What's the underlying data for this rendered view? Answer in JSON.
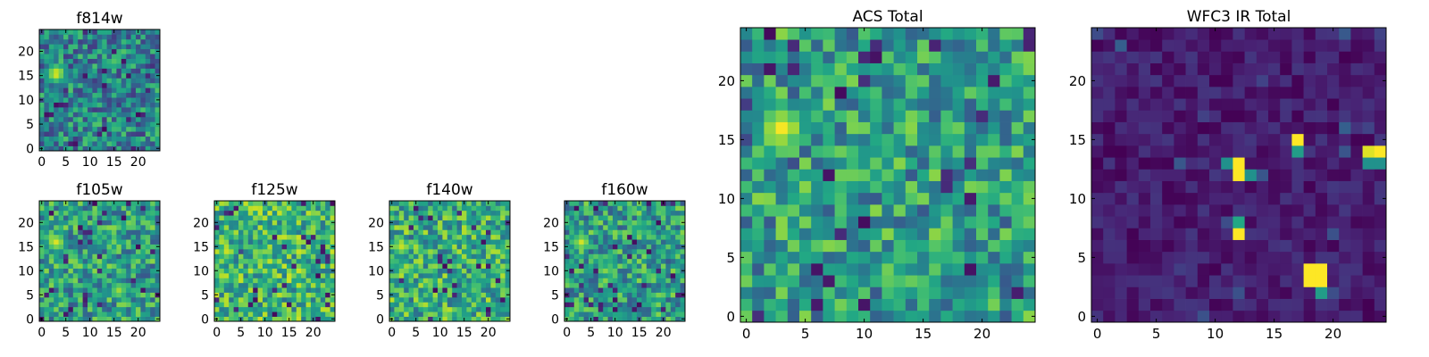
{
  "chart_data": [
    {
      "type": "heatmap",
      "title": "f814w",
      "colormap": "viridis",
      "xlim": [
        -0.5,
        24.5
      ],
      "ylim": [
        -0.5,
        24.5
      ],
      "x_ticks": [
        0,
        5,
        10,
        15,
        20
      ],
      "y_ticks": [
        0,
        5,
        10,
        15,
        20
      ],
      "grid": false,
      "bright_blobs": [
        {
          "x": 3,
          "y": 15.5,
          "level": 0.95
        }
      ],
      "background_level": 0.45
    },
    {
      "type": "heatmap",
      "title": "f105w",
      "colormap": "viridis",
      "xlim": [
        -0.5,
        24.5
      ],
      "ylim": [
        -0.5,
        24.5
      ],
      "x_ticks": [
        0,
        5,
        10,
        15,
        20
      ],
      "y_ticks": [
        0,
        5,
        10,
        15,
        20
      ],
      "grid": false,
      "bright_blobs": [
        {
          "x": 3,
          "y": 16,
          "level": 0.95
        },
        {
          "x": 16,
          "y": 6,
          "level": 0.85
        }
      ],
      "background_level": 0.55
    },
    {
      "type": "heatmap",
      "title": "f125w",
      "colormap": "viridis",
      "xlim": [
        -0.5,
        24.5
      ],
      "ylim": [
        -0.5,
        24.5
      ],
      "x_ticks": [
        0,
        5,
        10,
        15,
        20
      ],
      "y_ticks": [
        0,
        5,
        10,
        15,
        20
      ],
      "grid": false,
      "bright_blobs": [
        {
          "x": 2,
          "y": 14,
          "level": 0.85
        }
      ],
      "background_level": 0.65
    },
    {
      "type": "heatmap",
      "title": "f140w",
      "colormap": "viridis",
      "xlim": [
        -0.5,
        24.5
      ],
      "ylim": [
        -0.5,
        24.5
      ],
      "x_ticks": [
        0,
        5,
        10,
        15,
        20
      ],
      "y_ticks": [
        0,
        5,
        10,
        15,
        20
      ],
      "grid": false,
      "bright_blobs": [
        {
          "x": 2,
          "y": 15,
          "level": 0.9
        }
      ],
      "background_level": 0.62
    },
    {
      "type": "heatmap",
      "title": "f160w",
      "colormap": "viridis",
      "xlim": [
        -0.5,
        24.5
      ],
      "ylim": [
        -0.5,
        24.5
      ],
      "x_ticks": [
        0,
        5,
        10,
        15,
        20
      ],
      "y_ticks": [
        0,
        5,
        10,
        15,
        20
      ],
      "grid": false,
      "bright_blobs": [
        {
          "x": 3,
          "y": 16,
          "level": 0.92
        }
      ],
      "background_level": 0.55
    },
    {
      "type": "heatmap",
      "title": "ACS Total",
      "colormap": "viridis",
      "xlim": [
        -0.5,
        24.5
      ],
      "ylim": [
        -0.5,
        24.5
      ],
      "x_ticks": [
        0,
        5,
        10,
        15,
        20
      ],
      "y_ticks": [
        0,
        5,
        10,
        15,
        20
      ],
      "grid": false,
      "bright_blobs": [
        {
          "x": 3,
          "y": 16,
          "level": 0.97
        }
      ],
      "background_level": 0.55
    },
    {
      "type": "heatmap",
      "title": "WFC3 IR Total",
      "colormap": "viridis",
      "xlim": [
        -0.5,
        24.5
      ],
      "ylim": [
        -0.5,
        24.5
      ],
      "x_ticks": [
        0,
        5,
        10,
        15,
        20
      ],
      "y_ticks": [
        0,
        5,
        10,
        15,
        20
      ],
      "grid": false,
      "background_level": 0.08,
      "bright_pixels": [
        {
          "x": 18,
          "y": 3,
          "level": 1.0
        },
        {
          "x": 19,
          "y": 3,
          "level": 1.0
        },
        {
          "x": 18,
          "y": 4,
          "level": 1.0
        },
        {
          "x": 19,
          "y": 4,
          "level": 1.0
        },
        {
          "x": 12,
          "y": 7,
          "level": 1.0
        },
        {
          "x": 12,
          "y": 8,
          "level": 0.6
        },
        {
          "x": 12,
          "y": 12,
          "level": 1.0
        },
        {
          "x": 12,
          "y": 13,
          "level": 1.0
        },
        {
          "x": 11,
          "y": 13,
          "level": 0.5
        },
        {
          "x": 13,
          "y": 12,
          "level": 0.5
        },
        {
          "x": 17,
          "y": 15,
          "level": 1.0
        },
        {
          "x": 17,
          "y": 14,
          "level": 0.55
        },
        {
          "x": 24,
          "y": 14,
          "level": 1.0
        },
        {
          "x": 23,
          "y": 14,
          "level": 0.95
        },
        {
          "x": 23,
          "y": 13,
          "level": 0.5
        },
        {
          "x": 24,
          "y": 13,
          "level": 0.5
        },
        {
          "x": 19,
          "y": 2,
          "level": 0.55
        }
      ]
    }
  ]
}
